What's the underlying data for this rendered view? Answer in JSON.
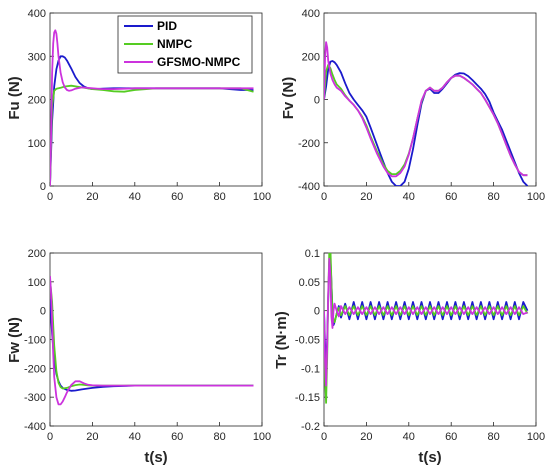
{
  "series_colors": {
    "PID": "#1a1acc",
    "NMPC": "#55cc22",
    "GFSMO-NMPC": "#cc33dd"
  },
  "chart_data": [
    {
      "type": "line",
      "panel": "top-left",
      "ylabel": "Fu (N)",
      "xlabel": "",
      "xlim": [
        0,
        100
      ],
      "ylim": [
        0,
        400
      ],
      "xticks": [
        "0",
        "20",
        "40",
        "60",
        "80",
        "100"
      ],
      "yticks": [
        "0",
        "100",
        "200",
        "300",
        "400"
      ],
      "legend": {
        "position": "top-right",
        "entries": [
          "PID",
          "NMPC",
          "GFSMO-NMPC"
        ]
      },
      "series": [
        {
          "name": "PID",
          "x": [
            0,
            1,
            2,
            3,
            4,
            5,
            6,
            7,
            8,
            10,
            12,
            14,
            16,
            18,
            20,
            25,
            30,
            40,
            50,
            60,
            70,
            80,
            90,
            96
          ],
          "y": [
            0,
            150,
            230,
            270,
            290,
            300,
            300,
            297,
            290,
            272,
            252,
            238,
            230,
            226,
            224,
            225,
            226,
            226,
            226,
            226,
            226,
            226,
            222,
            222
          ]
        },
        {
          "name": "NMPC",
          "x": [
            0,
            1,
            2,
            3,
            4,
            5,
            7,
            10,
            15,
            20,
            25,
            30,
            35,
            40,
            50,
            60,
            70,
            80,
            90,
            96
          ],
          "y": [
            0,
            185,
            220,
            225,
            226,
            227,
            230,
            232,
            228,
            224,
            222,
            219,
            218,
            222,
            226,
            226,
            226,
            226,
            226,
            218
          ]
        },
        {
          "name": "GFSMO-NMPC",
          "x": [
            0,
            0.5,
            1,
            1.5,
            2,
            2.5,
            3,
            3.5,
            4,
            5,
            6,
            7,
            8,
            9,
            10,
            12,
            15,
            20,
            25,
            30,
            40,
            50,
            60,
            70,
            80,
            90,
            96
          ],
          "y": [
            0,
            120,
            260,
            330,
            355,
            360,
            352,
            330,
            300,
            262,
            240,
            228,
            222,
            220,
            221,
            225,
            228,
            226,
            224,
            224,
            226,
            226,
            226,
            226,
            226,
            226,
            226
          ]
        }
      ]
    },
    {
      "type": "line",
      "panel": "top-right",
      "ylabel": "Fv (N)",
      "xlabel": "",
      "xlim": [
        0,
        100
      ],
      "ylim": [
        -400,
        400
      ],
      "xticks": [
        "0",
        "20",
        "40",
        "60",
        "80",
        "100"
      ],
      "yticks": [
        "-400",
        "-200",
        "0",
        "200",
        "400"
      ],
      "series": [
        {
          "name": "PID",
          "x": [
            0,
            1,
            2,
            3,
            4,
            5,
            6,
            8,
            10,
            12,
            14,
            16,
            18,
            20,
            22,
            25,
            28,
            30,
            32,
            34,
            36,
            38,
            40,
            42,
            44,
            46,
            48,
            50,
            52,
            54,
            56,
            58,
            60,
            62,
            64,
            66,
            68,
            70,
            72,
            74,
            76,
            78,
            80,
            82,
            84,
            86,
            88,
            90,
            92,
            94,
            96
          ],
          "y": [
            0,
            60,
            140,
            175,
            178,
            172,
            160,
            125,
            75,
            30,
            0,
            -25,
            -50,
            -80,
            -130,
            -210,
            -290,
            -340,
            -380,
            -400,
            -400,
            -380,
            -320,
            -230,
            -120,
            -20,
            40,
            50,
            30,
            30,
            50,
            75,
            100,
            115,
            122,
            120,
            108,
            90,
            70,
            50,
            25,
            -10,
            -60,
            -100,
            -140,
            -190,
            -240,
            -290,
            -340,
            -380,
            -400
          ]
        },
        {
          "name": "NMPC",
          "x": [
            0,
            1,
            2,
            3,
            4,
            5,
            6,
            8,
            10,
            12,
            14,
            16,
            18,
            20,
            22,
            25,
            28,
            30,
            32,
            34,
            36,
            38,
            40,
            42,
            44,
            46,
            48,
            50,
            52,
            54,
            56,
            58,
            60,
            62,
            64,
            66,
            68,
            70,
            72,
            74,
            76,
            78,
            80,
            82,
            84,
            86,
            88,
            90,
            92,
            94,
            96
          ],
          "y": [
            0,
            130,
            160,
            145,
            115,
            90,
            70,
            50,
            20,
            -5,
            -25,
            -50,
            -80,
            -120,
            -170,
            -240,
            -300,
            -330,
            -345,
            -345,
            -330,
            -300,
            -250,
            -180,
            -90,
            -10,
            40,
            55,
            40,
            40,
            55,
            80,
            100,
            110,
            110,
            100,
            85,
            70,
            50,
            30,
            0,
            -35,
            -70,
            -110,
            -160,
            -210,
            -260,
            -300,
            -335,
            -350,
            -350
          ]
        },
        {
          "name": "GFSMO-NMPC",
          "x": [
            0,
            0.5,
            1,
            1.5,
            2,
            3,
            4,
            5,
            6,
            8,
            10,
            12,
            14,
            16,
            18,
            20,
            22,
            25,
            28,
            30,
            32,
            34,
            36,
            38,
            40,
            42,
            44,
            46,
            48,
            50,
            52,
            54,
            56,
            58,
            60,
            62,
            64,
            66,
            68,
            70,
            72,
            74,
            76,
            78,
            80,
            82,
            84,
            86,
            88,
            90,
            92,
            94,
            96
          ],
          "y": [
            0,
            200,
            265,
            240,
            180,
            120,
            90,
            70,
            55,
            40,
            15,
            -5,
            -25,
            -50,
            -85,
            -130,
            -180,
            -250,
            -310,
            -340,
            -355,
            -355,
            -340,
            -310,
            -255,
            -180,
            -90,
            -5,
            40,
            55,
            40,
            40,
            55,
            80,
            100,
            110,
            110,
            100,
            85,
            70,
            50,
            30,
            0,
            -35,
            -70,
            -110,
            -160,
            -210,
            -260,
            -300,
            -335,
            -350,
            -350
          ]
        }
      ]
    },
    {
      "type": "line",
      "panel": "bottom-left",
      "ylabel": "Fw (N)",
      "xlabel": "t(s)",
      "xlim": [
        0,
        100
      ],
      "ylim": [
        -400,
        200
      ],
      "xticks": [
        "0",
        "20",
        "40",
        "60",
        "80",
        "100"
      ],
      "yticks": [
        "-400",
        "-300",
        "-200",
        "-100",
        "0",
        "100",
        "200"
      ],
      "series": [
        {
          "name": "PID",
          "x": [
            0,
            1,
            2,
            3,
            4,
            5,
            6,
            8,
            10,
            12,
            15,
            20,
            25,
            30,
            40,
            50,
            60,
            70,
            80,
            90,
            96
          ],
          "y": [
            40,
            -80,
            -170,
            -220,
            -245,
            -260,
            -268,
            -275,
            -278,
            -277,
            -273,
            -268,
            -264,
            -262,
            -260,
            -260,
            -260,
            -260,
            -260,
            -260,
            -260
          ]
        },
        {
          "name": "NMPC",
          "x": [
            0,
            1,
            2,
            3,
            4,
            5,
            6,
            8,
            10,
            12,
            14,
            16,
            18,
            20,
            25,
            30,
            40,
            50,
            60,
            70,
            80,
            90,
            96
          ],
          "y": [
            110,
            30,
            -120,
            -210,
            -250,
            -265,
            -270,
            -268,
            -262,
            -258,
            -256,
            -257,
            -259,
            -260,
            -260,
            -260,
            -260,
            -260,
            -260,
            -260,
            -260,
            -260,
            -260
          ]
        },
        {
          "name": "GFSMO-NMPC",
          "x": [
            0,
            0.5,
            1,
            1.5,
            2,
            3,
            4,
            5,
            6,
            7,
            8,
            10,
            12,
            14,
            16,
            18,
            20,
            25,
            30,
            40,
            50,
            60,
            70,
            80,
            90,
            96
          ],
          "y": [
            120,
            60,
            -40,
            -150,
            -230,
            -300,
            -325,
            -325,
            -315,
            -300,
            -283,
            -258,
            -245,
            -245,
            -252,
            -257,
            -259,
            -260,
            -260,
            -260,
            -260,
            -260,
            -260,
            -260,
            -260,
            -260
          ]
        }
      ]
    },
    {
      "type": "line",
      "panel": "bottom-right",
      "ylabel": "Tr (N·m)",
      "xlabel": "t(s)",
      "xlim": [
        0,
        100
      ],
      "ylim": [
        -0.2,
        0.1
      ],
      "xticks": [
        "0",
        "20",
        "40",
        "60",
        "80",
        "100"
      ],
      "yticks": [
        "-0.2",
        "-0.15",
        "-0.1",
        "-0.05",
        "0",
        "0.05",
        "0.1"
      ],
      "series": [
        {
          "name": "PID",
          "x": [
            0,
            0.5,
            1,
            1.5,
            2,
            2.5,
            3,
            3.5,
            4,
            4.5,
            5,
            6,
            7,
            8,
            10,
            12,
            14,
            16,
            18,
            20,
            22,
            24,
            26,
            28,
            30,
            32,
            34,
            36,
            38,
            40,
            42,
            44,
            46,
            48,
            50,
            52,
            54,
            56,
            58,
            60,
            62,
            64,
            66,
            68,
            70,
            72,
            74,
            76,
            78,
            80,
            82,
            84,
            86,
            88,
            90,
            92,
            94,
            96
          ],
          "y": [
            0,
            -0.06,
            -0.1,
            -0.05,
            0.02,
            0.085,
            0.09,
            0.05,
            0.0,
            -0.025,
            -0.02,
            -0.005,
            0.008,
            -0.012,
            0.012,
            -0.015,
            0.015,
            -0.015,
            0.015,
            -0.015,
            0.015,
            -0.015,
            0.015,
            -0.015,
            0.015,
            -0.015,
            0.015,
            -0.015,
            0.015,
            -0.015,
            0.015,
            -0.015,
            0.015,
            -0.015,
            0.015,
            -0.015,
            0.015,
            -0.015,
            0.015,
            -0.015,
            0.015,
            -0.015,
            0.015,
            -0.015,
            0.015,
            -0.015,
            0.015,
            -0.015,
            0.015,
            -0.015,
            0.015,
            -0.015,
            0.015,
            -0.015,
            0.015,
            -0.015,
            0.015,
            0.0
          ]
        },
        {
          "name": "NMPC",
          "x": [
            0,
            0.5,
            1,
            1.5,
            2,
            2.5,
            3,
            3.5,
            4,
            5,
            6,
            7,
            8,
            10,
            12,
            14,
            16,
            18,
            20,
            22,
            24,
            26,
            28,
            30,
            32,
            34,
            36,
            38,
            40,
            42,
            44,
            46,
            48,
            50,
            52,
            54,
            56,
            58,
            60,
            62,
            64,
            66,
            68,
            70,
            72,
            74,
            76,
            78,
            80,
            82,
            84,
            86,
            88,
            90,
            92,
            94,
            96
          ],
          "y": [
            0,
            -0.12,
            -0.16,
            -0.08,
            0.02,
            0.105,
            0.11,
            0.05,
            -0.01,
            -0.02,
            -0.005,
            0.005,
            -0.008,
            0.008,
            -0.008,
            0.008,
            -0.008,
            0.008,
            -0.008,
            0.008,
            -0.008,
            0.008,
            -0.008,
            0.008,
            -0.008,
            0.008,
            -0.008,
            0.008,
            -0.008,
            0.008,
            -0.008,
            0.008,
            -0.008,
            0.008,
            -0.008,
            0.008,
            -0.008,
            0.008,
            -0.008,
            0.008,
            -0.008,
            0.008,
            -0.008,
            0.008,
            -0.008,
            0.008,
            -0.008,
            0.008,
            -0.008,
            0.008,
            -0.008,
            0.008,
            -0.008,
            0.008,
            -0.008,
            0.008,
            -0.005
          ]
        },
        {
          "name": "GFSMO-NMPC",
          "x": [
            0,
            0.5,
            1,
            1.5,
            2,
            2.5,
            3,
            3.5,
            4,
            4.5,
            5,
            6,
            7,
            8,
            10,
            12,
            14,
            16,
            18,
            20,
            22,
            24,
            26,
            28,
            30,
            32,
            34,
            36,
            38,
            40,
            42,
            44,
            46,
            48,
            50,
            52,
            54,
            56,
            58,
            60,
            62,
            64,
            66,
            68,
            70,
            72,
            74,
            76,
            78,
            80,
            82,
            84,
            86,
            88,
            90,
            92,
            94,
            96
          ],
          "y": [
            0,
            -0.09,
            -0.13,
            -0.06,
            0.03,
            0.09,
            0.06,
            -0.01,
            -0.03,
            0.0,
            0.012,
            0.0,
            -0.01,
            0.008,
            -0.006,
            0.006,
            -0.006,
            0.006,
            -0.006,
            0.006,
            -0.006,
            0.006,
            -0.006,
            0.006,
            -0.006,
            0.006,
            -0.006,
            0.006,
            -0.006,
            0.006,
            -0.006,
            0.006,
            -0.006,
            0.006,
            -0.006,
            0.006,
            -0.006,
            0.006,
            -0.006,
            0.006,
            -0.006,
            0.006,
            -0.006,
            0.006,
            -0.006,
            0.006,
            -0.006,
            0.006,
            -0.006,
            0.006,
            -0.006,
            0.006,
            -0.006,
            0.006,
            -0.006,
            0.006,
            -0.006,
            -0.003
          ]
        }
      ]
    }
  ]
}
